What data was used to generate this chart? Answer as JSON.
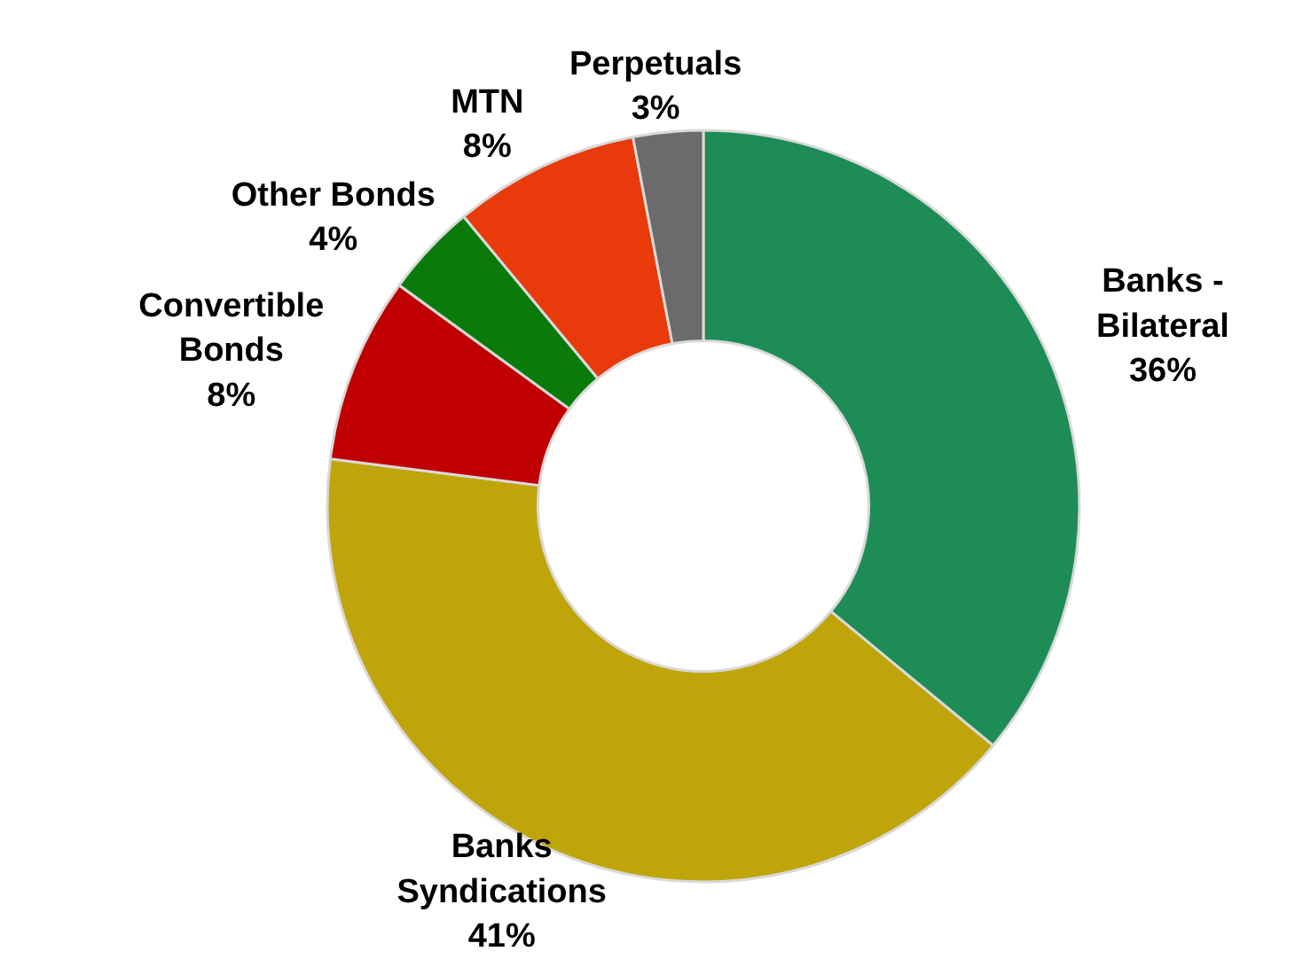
{
  "chart_data": {
    "type": "donut",
    "categories": [
      "Banks -\nBilateral",
      "Banks\nSyndications",
      "Convertible\nBonds",
      "Other Bonds",
      "MTN",
      "Perpetuals"
    ],
    "values": [
      36,
      41,
      8,
      4,
      8,
      3
    ],
    "value_labels": [
      "36%",
      "41%",
      "8%",
      "4%",
      "8%",
      "3%"
    ],
    "colors": [
      "#1e8c55",
      "#c0a50a",
      "#c00000",
      "#0a7a0a",
      "#e83a0a",
      "#6b6b6b"
    ],
    "legend": false
  }
}
